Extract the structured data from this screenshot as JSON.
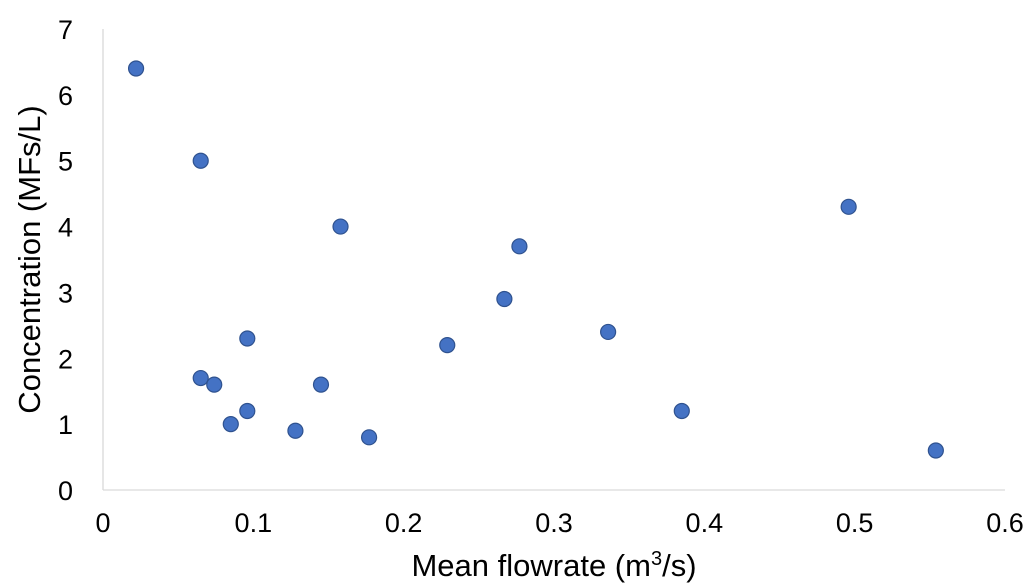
{
  "chart_data": {
    "type": "scatter",
    "title": "",
    "xlabel": "Mean flowrate (m³/s)",
    "ylabel": "Concentration (MFs/L)",
    "xlim": [
      0,
      0.6
    ],
    "ylim": [
      0,
      7
    ],
    "x_ticks": [
      "0",
      "0.1",
      "0.2",
      "0.3",
      "0.4",
      "0.5",
      "0.6"
    ],
    "y_ticks": [
      "0",
      "1",
      "2",
      "3",
      "4",
      "5",
      "6",
      "7"
    ],
    "grid": false,
    "legend": "none",
    "marker_color": "#4472c4",
    "marker_edge_color": "#2f528f",
    "points": [
      {
        "x": 0.022,
        "y": 6.4
      },
      {
        "x": 0.065,
        "y": 5.0
      },
      {
        "x": 0.158,
        "y": 4.0
      },
      {
        "x": 0.277,
        "y": 3.7
      },
      {
        "x": 0.496,
        "y": 4.3
      },
      {
        "x": 0.267,
        "y": 2.9
      },
      {
        "x": 0.336,
        "y": 2.4
      },
      {
        "x": 0.096,
        "y": 2.3
      },
      {
        "x": 0.229,
        "y": 2.2
      },
      {
        "x": 0.065,
        "y": 1.7
      },
      {
        "x": 0.074,
        "y": 1.6
      },
      {
        "x": 0.145,
        "y": 1.6
      },
      {
        "x": 0.096,
        "y": 1.2
      },
      {
        "x": 0.385,
        "y": 1.2
      },
      {
        "x": 0.085,
        "y": 1.0
      },
      {
        "x": 0.128,
        "y": 0.9
      },
      {
        "x": 0.177,
        "y": 0.8
      },
      {
        "x": 0.554,
        "y": 0.6
      }
    ]
  }
}
